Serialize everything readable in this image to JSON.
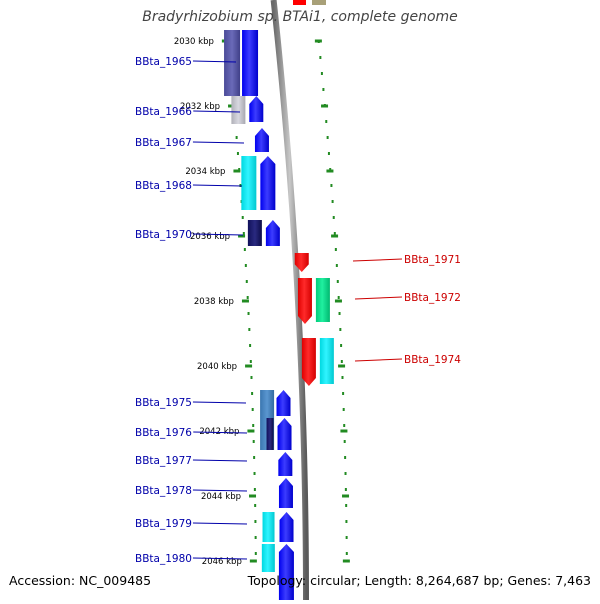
{
  "title": "Bradyrhizobium sp. BTAi1, complete genome",
  "footer": {
    "accession": "Accession: NC_009485",
    "topology": "Topology: circular; Length: 8,264,687 bp; Genes: 7,463"
  },
  "kbp_labels": [
    "2030 kbp",
    "2032 kbp",
    "2034 kbp",
    "2036 kbp",
    "2038 kbp",
    "2040 kbp",
    "2042 kbp",
    "2044 kbp",
    "2046 kbp"
  ],
  "left_genes": [
    "BBta_1965",
    "BBta_1966",
    "BBta_1967",
    "BBta_1968",
    "BBta_1970",
    "BBta_1975",
    "BBta_1976",
    "BBta_1977",
    "BBta_1978",
    "BBta_1979",
    "BBta_1980"
  ],
  "right_genes": [
    "BBta_1971",
    "BBta_1972",
    "BBta_1974"
  ],
  "colors": {
    "strand_minus_label": "#0000aa",
    "strand_plus_label": "#cc0000",
    "tick": "#228b22",
    "gene_blue": "#1a1aff",
    "gene_red": "#ff0000",
    "gene_green": "#00e08a",
    "gene_cyan": "#00e8f0",
    "gene_navy": "#1a1a6e",
    "gene_slate": "#5a5aa8",
    "gene_steel": "#4a86c0",
    "gene_grey": "#c0c0c8",
    "gene_olive": "#a8a078"
  }
}
